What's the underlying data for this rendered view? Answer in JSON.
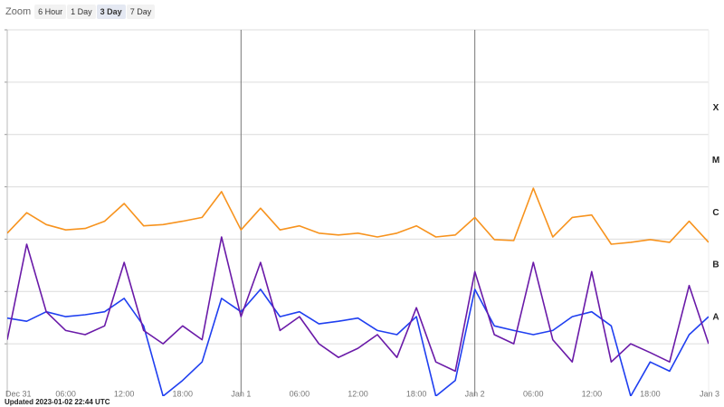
{
  "zoom": {
    "label": "Zoom",
    "buttons": [
      "6 Hour",
      "1 Day",
      "3 Day",
      "7 Day"
    ],
    "selected": 2
  },
  "chart_data": {
    "type": "line",
    "log_scale": true,
    "x": [
      0,
      2,
      4,
      6,
      8,
      10,
      12,
      14,
      16,
      18,
      20,
      22,
      24,
      26,
      28,
      30,
      32,
      34,
      36,
      38,
      40,
      42,
      44,
      46,
      48,
      50,
      52,
      54,
      56,
      58,
      60,
      62,
      64,
      66,
      68,
      70,
      72
    ],
    "xlim": [
      0,
      72
    ],
    "xticks": [
      {
        "value": 0,
        "label": "Dec 31"
      },
      {
        "value": 6,
        "label": "06:00"
      },
      {
        "value": 12,
        "label": "12:00"
      },
      {
        "value": 18,
        "label": "18:00"
      },
      {
        "value": 24,
        "label": "Jan 1"
      },
      {
        "value": 30,
        "label": "06:00"
      },
      {
        "value": 36,
        "label": "12:00"
      },
      {
        "value": 42,
        "label": "18:00"
      },
      {
        "value": 48,
        "label": "Jan 2"
      },
      {
        "value": 54,
        "label": "06:00"
      },
      {
        "value": 60,
        "label": "12:00"
      },
      {
        "value": 66,
        "label": "18:00"
      },
      {
        "value": 72,
        "label": "Jan 3"
      }
    ],
    "xgrid_lines": [
      24,
      48
    ],
    "ylim": [
      1e-09,
      0.01
    ],
    "yticks": [
      {
        "value": 3.2e-08,
        "label": "A"
      },
      {
        "value": 3.2e-07,
        "label": "B"
      },
      {
        "value": 3.2e-06,
        "label": "C"
      },
      {
        "value": 3.2e-05,
        "label": "M"
      },
      {
        "value": 0.00032,
        "label": "X"
      }
    ],
    "grid_lines": [
      1e-08,
      1e-07,
      1e-06,
      1e-05,
      0.0001,
      0.001,
      0.01
    ],
    "series": [
      {
        "color": "#f7931e",
        "values": [
          1.3e-06,
          3.2e-06,
          1.9e-06,
          1.5e-06,
          1.6e-06,
          2.2e-06,
          4.8e-06,
          1.8e-06,
          1.9e-06,
          2.2e-06,
          2.6e-06,
          8.1e-06,
          1.5e-06,
          3.9e-06,
          1.5e-06,
          1.8e-06,
          1.3e-06,
          1.2e-06,
          1.3e-06,
          1.1e-06,
          1.3e-06,
          1.8e-06,
          1.1e-06,
          1.2e-06,
          2.6e-06,
          9.8e-07,
          9.4e-07,
          9.4e-06,
          1.1e-06,
          2.6e-06,
          2.9e-06,
          8e-07,
          8.7e-07,
          9.8e-07,
          8.7e-07,
          2.2e-06,
          8.7e-07
        ]
      },
      {
        "color": "#1f3ff0",
        "values": [
          3.1e-08,
          2.7e-08,
          4.1e-08,
          3.3e-08,
          3.6e-08,
          4.1e-08,
          7.4e-08,
          2.2e-08,
          1e-09,
          2e-09,
          4.5e-09,
          7.4e-08,
          4.1e-08,
          1.1e-07,
          3.3e-08,
          4.1e-08,
          2.4e-08,
          2.7e-08,
          3.1e-08,
          1.8e-08,
          1.5e-08,
          3.3e-08,
          1e-09,
          2e-09,
          1.1e-07,
          2.2e-08,
          1.8e-08,
          1.5e-08,
          1.8e-08,
          3.3e-08,
          4.1e-08,
          2.2e-08,
          1e-09,
          4.5e-09,
          3e-09,
          1.5e-08,
          3.3e-08
        ]
      },
      {
        "color": "#6a1aa8",
        "values": [
          1.2e-08,
          8e-07,
          4.1e-08,
          1.8e-08,
          1.5e-08,
          2.2e-08,
          3.6e-07,
          1.8e-08,
          1e-08,
          2.2e-08,
          1.2e-08,
          1.1e-06,
          3.3e-08,
          3.6e-07,
          1.8e-08,
          3.3e-08,
          1e-08,
          5.5e-09,
          8.2e-09,
          1.5e-08,
          5.5e-09,
          4.9e-08,
          4.5e-09,
          3e-09,
          2.4e-07,
          1.5e-08,
          1e-08,
          3.6e-07,
          1.2e-08,
          4.5e-09,
          2.4e-07,
          4.5e-09,
          1e-08,
          6.8e-09,
          4.5e-09,
          1.3e-07,
          1e-08
        ]
      }
    ]
  },
  "footer": "Updated 2023-01-02 22:44 UTC"
}
